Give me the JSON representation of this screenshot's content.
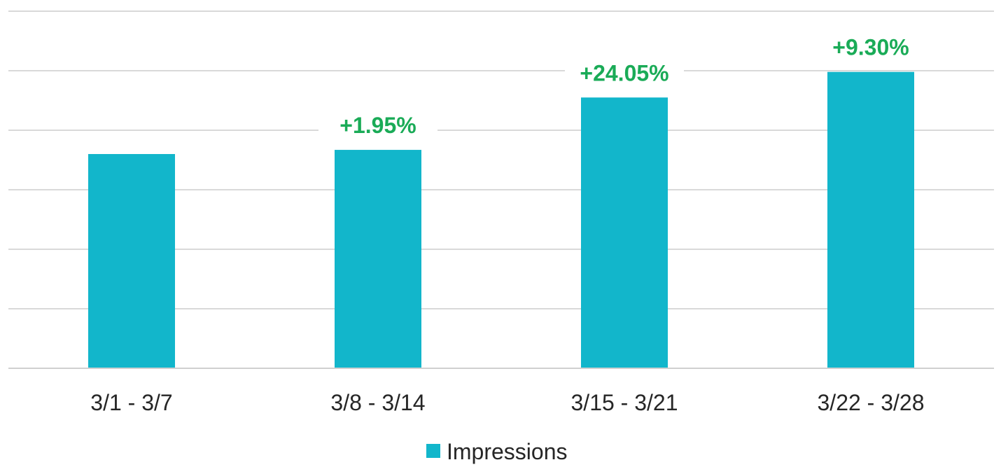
{
  "chart_data": {
    "type": "bar",
    "categories": [
      "3/1 - 3/7",
      "3/8 - 3/14",
      "3/15 - 3/21",
      "3/22 - 3/28"
    ],
    "series": [
      {
        "name": "Impressions",
        "values": [
          3.6,
          3.67,
          4.55,
          4.98
        ],
        "data_labels": [
          "",
          "+1.95%",
          "+24.05%",
          "+9.30%"
        ],
        "color": "#12b6cb"
      }
    ],
    "title": "",
    "xlabel": "",
    "ylabel": "",
    "ylim": [
      0,
      6
    ],
    "y_tick_labels_shown": false,
    "grid": true,
    "legend": {
      "position": "bottom"
    },
    "data_label_color": "#1aab57"
  }
}
